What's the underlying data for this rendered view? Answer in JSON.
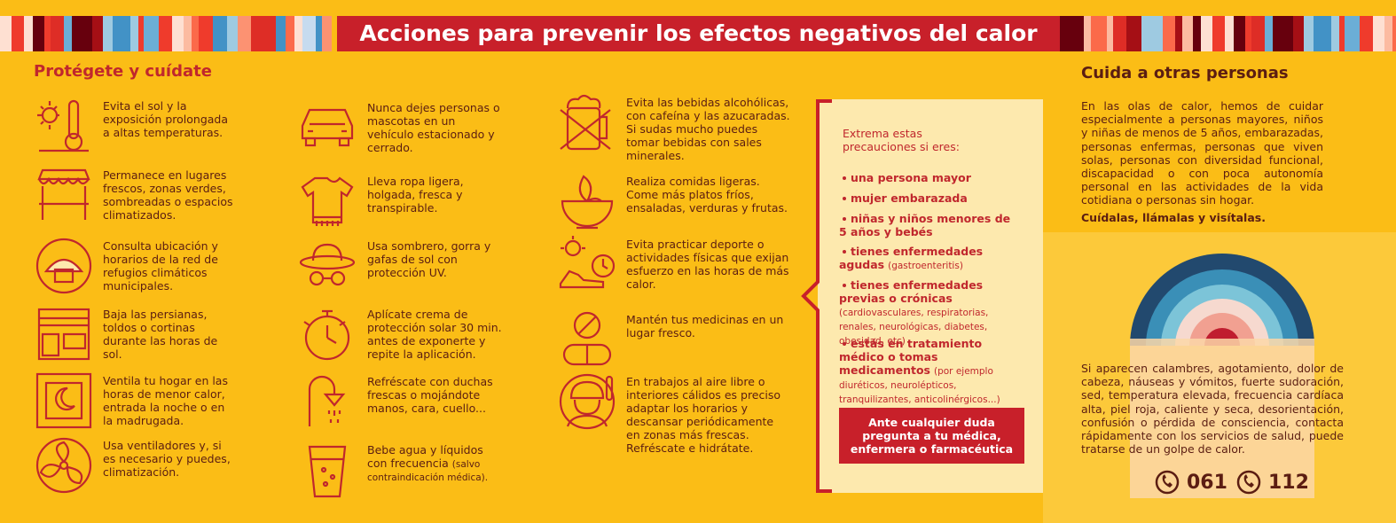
{
  "header": {
    "title": "Acciones para prevenir los efectos negativos del calor"
  },
  "protect": {
    "title": "Protégete y cuídate",
    "columns": [
      [
        {
          "text": "Evita el sol y la exposición prolongada a altas temperaturas."
        },
        {
          "text": "Permanece en lugares frescos, zonas verdes, sombreadas o espacios climatizados."
        },
        {
          "text": "Consulta ubicación y horarios de la red de refugios climáticos municipales."
        },
        {
          "text": "Baja las persianas, toldos o cortinas durante las horas de sol."
        },
        {
          "text": "Ventila tu hogar en las horas de menor calor, entrada la noche o en la madrugada."
        },
        {
          "text": "Usa ventiladores y, si es necesario y puedes, climatización."
        }
      ],
      [
        {
          "text": "Nunca dejes personas o mascotas en un vehículo estacionado y cerrado."
        },
        {
          "text": "Lleva ropa ligera, holgada, fresca y transpirable."
        },
        {
          "text": "Usa sombrero, gorra y gafas de sol con protección UV."
        },
        {
          "text": "Aplícate crema de protección solar 30 min. antes de exponerte y repite la aplicación."
        },
        {
          "text": "Refréscate con duchas frescas o mojándote manos, cara, cuello..."
        },
        {
          "text": "Bebe agua y líquidos con frecuencia",
          "note": "(salvo contraindicación médica)."
        }
      ],
      [
        {
          "text": "Evita las bebidas alcohólicas, con cafeína y las azucaradas. Si sudas mucho puedes tomar bebidas con sales minerales."
        },
        {
          "text": "Realiza comidas ligeras. Come más platos fríos, ensaladas, verduras y frutas."
        },
        {
          "text": "Evita practicar deporte o actividades físicas que exijan esfuerzo en las horas de más calor."
        },
        {
          "text": "Mantén tus medicinas en un lugar fresco."
        },
        {
          "text": "En trabajos al aire libre o interiores cálidos es preciso adaptar los horarios y descansar periódicamente en zonas más frescas. Refréscate e hidrátate."
        }
      ]
    ]
  },
  "precautions": {
    "intro": "Extrema estas precauciones si eres:",
    "items": [
      {
        "bold": "una persona mayor"
      },
      {
        "bold": "mujer embarazada"
      },
      {
        "bold": "niñas y niños menores de 5 años y bebés"
      },
      {
        "bold": "tienes enfermedades agudas",
        "note": "(gastroenteritis)"
      },
      {
        "bold": "tienes enfermedades previas o crónicas",
        "note": "(cardiovasculares, respiratorias, renales, neurológicas, diabetes, obesidad, etc)"
      },
      {
        "bold": "estás en tratamiento médico o tomas medicamentos",
        "note": "(por ejemplo diuréticos, neurolépticos, tranquilizantes, anticolinérgicos...)"
      }
    ],
    "button": "Ante cualquier duda pregunta a tu médica, enfermera o farmacéutica"
  },
  "others": {
    "title": "Cuida a otras personas",
    "paragraph": "En las olas de calor, hemos de cuidar especialmente a personas mayores, niños y niñas de menos de 5 años, embarazadas, personas enfermas, personas que viven solas, personas con diversidad funcional, discapacidad o con poca autonomía personal en las actividades de la vida cotidiana o personas sin hogar.",
    "emphasis": "Cuídalas, llámalas y visítalas.",
    "symptoms": "Si aparecen calambres, agotamiento, dolor de cabeza, náuseas y vómitos, fuerte sudoración, sed, temperatura elevada, frecuencia cardíaca alta, piel roja, caliente y seca, desorientación, confusión o pérdida de consciencia, contacta rápidamente con los servicios de salud, puede tratarse de un golpe de calor.",
    "phones": [
      "061",
      "112"
    ]
  }
}
